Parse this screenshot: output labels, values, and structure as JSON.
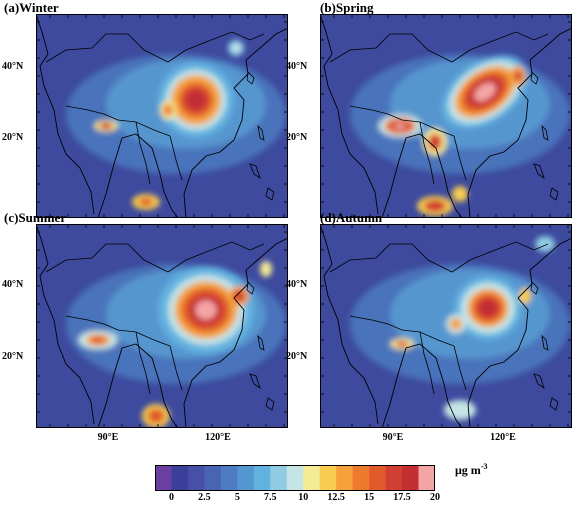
{
  "panels": [
    {
      "label": "(a)Winter",
      "lat_labels": [
        "40°N",
        "20°N"
      ],
      "lon_labels": []
    },
    {
      "label": "(b)Spring",
      "lat_labels": [
        "40°N",
        "20°N"
      ],
      "lon_labels": []
    },
    {
      "label": "(c)Summer",
      "lat_labels": [
        "40°N",
        "20°N"
      ],
      "lon_labels": [
        "90°E",
        "120°E"
      ]
    },
    {
      "label": "(d)Autumn",
      "lat_labels": [
        "40°N",
        "20°N"
      ],
      "lon_labels": [
        "90°E",
        "120°E"
      ]
    }
  ],
  "colorbar": {
    "ticks": [
      "0",
      "2.5",
      "5",
      "7.5",
      "10",
      "12.5",
      "15",
      "17.5",
      "20"
    ],
    "unit": "μg m",
    "unit_exponent": "-3",
    "colors": [
      "#6a3fa0",
      "#3b3f9a",
      "#4650a8",
      "#4a64b4",
      "#4e7cc2",
      "#5496d2",
      "#62b2e0",
      "#8fcbe3",
      "#c4e4e6",
      "#f4ec94",
      "#f8cc50",
      "#f5a23c",
      "#ee7a2e",
      "#e05a2c",
      "#d03f32",
      "#c42f34",
      "#f4a4a4"
    ]
  },
  "background_color": "#3d4a9e"
}
